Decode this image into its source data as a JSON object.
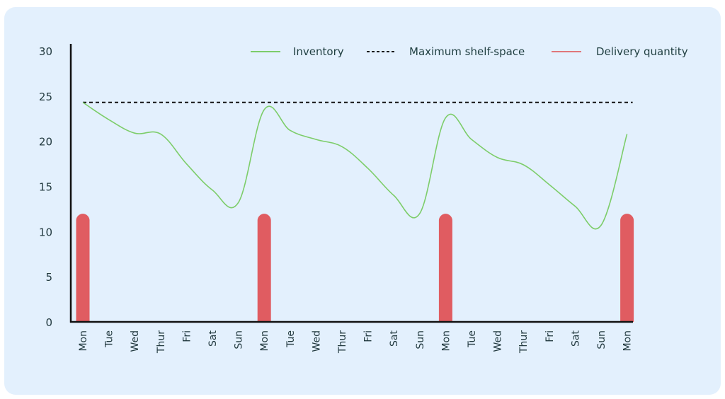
{
  "chart_data": {
    "type": "line",
    "title": "",
    "xlabel": "",
    "ylabel": "",
    "ylim": [
      0,
      30
    ],
    "yticks": [
      0,
      5,
      10,
      15,
      20,
      25,
      30
    ],
    "grid": false,
    "legend_position": "top-right",
    "categories": [
      "Mon",
      "Tue",
      "Wed",
      "Thur",
      "Fri",
      "Sat",
      "Sun",
      "Mon",
      "Tue",
      "Wed",
      "Thur",
      "Fri",
      "Sat",
      "Sun",
      "Mon",
      "Tue",
      "Wed",
      "Thur",
      "Fri",
      "Sat",
      "Sun",
      "Mon"
    ],
    "series": [
      {
        "name": "Inventory",
        "type": "line",
        "color": "#7dcd6a",
        "values": [
          24.3,
          22.4,
          20.9,
          20.8,
          17.5,
          14.6,
          13.2,
          23.5,
          21.2,
          20.2,
          19.4,
          17.0,
          14.0,
          12.0,
          22.6,
          20.2,
          18.2,
          17.4,
          15.2,
          12.8,
          10.7,
          20.8
        ]
      },
      {
        "name": "Maximum shelf-space",
        "type": "dashed-line",
        "color": "#111111",
        "values": [
          24.3,
          24.3,
          24.3,
          24.3,
          24.3,
          24.3,
          24.3,
          24.3,
          24.3,
          24.3,
          24.3,
          24.3,
          24.3,
          24.3,
          24.3,
          24.3,
          24.3,
          24.3,
          24.3,
          24.3,
          24.3,
          24.3
        ]
      },
      {
        "name": "Delivery quantity",
        "type": "bar",
        "color": "#e05c61",
        "values": [
          11.5,
          0,
          0,
          0,
          0,
          0,
          0,
          11.5,
          0,
          0,
          0,
          0,
          0,
          0,
          11.5,
          0,
          0,
          0,
          0,
          0,
          0,
          11.5
        ]
      }
    ]
  },
  "legend": {
    "inventory": "Inventory",
    "max_shelf": "Maximum shelf-space",
    "delivery": "Delivery quantity"
  },
  "colors": {
    "background": "#e3f0fd",
    "inventory": "#7dcd6a",
    "delivery": "#e05c61",
    "axis": "#111111",
    "text": "#233a40"
  }
}
